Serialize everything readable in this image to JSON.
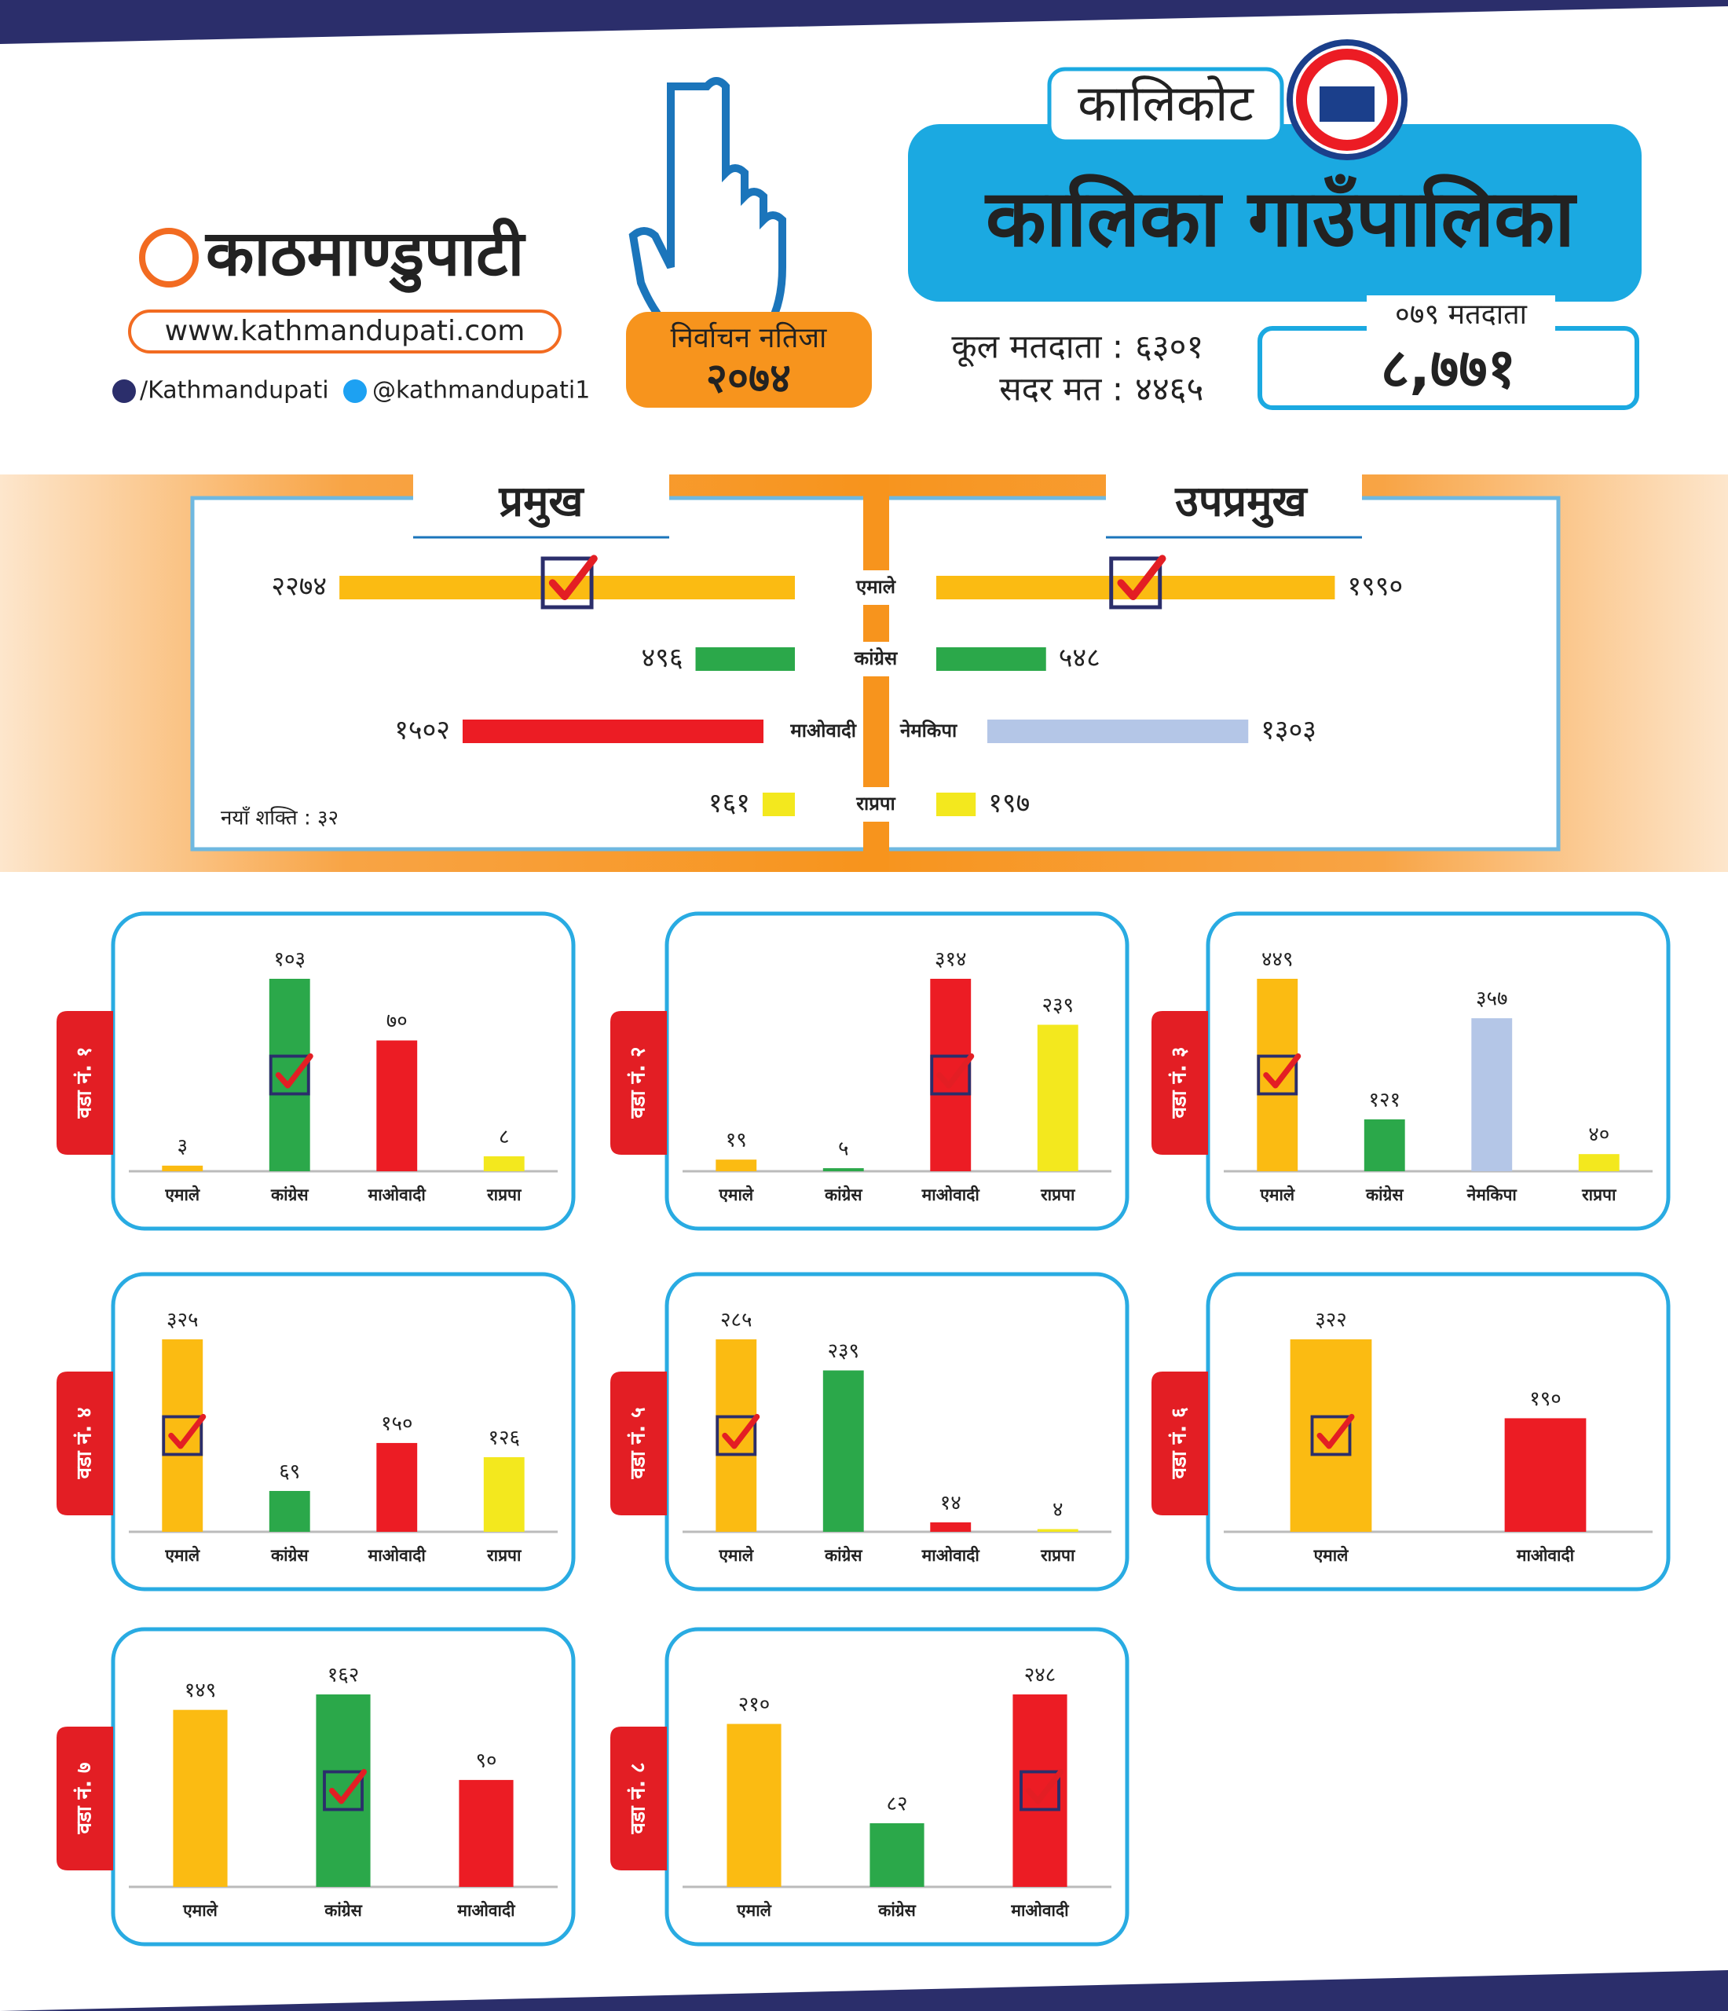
{
  "header": {
    "logo": "काठमाण्डुपाटी",
    "website": "www.kathmandupati.com",
    "facebook": "/Kathmandupati",
    "twitter": "@kathmandupati1",
    "badge_title": "निर्वाचन नतिजा",
    "badge_year": "२०७४",
    "district": "कालिकोट",
    "municipality": "कालिका गाउँपालिका",
    "total_voters_label": "कूल मतदाता :",
    "total_voters": "६३०१",
    "valid_votes_label": "सदर मत :",
    "valid_votes": "४४६५",
    "voters_079_label": "०७९ मतदाता",
    "voters_079": "८,७७१"
  },
  "chart_data": [
    {
      "type": "bar",
      "orientation": "horizontal",
      "categories": [
        "एमाले",
        "कांग्रेस",
        "माओवादी",
        "नेमकिपा",
        "राप्रपा"
      ],
      "colors": [
        "#fbbb12",
        "#2ba84a",
        "#ec1c24",
        "#b4c6e7",
        "#f3e81e"
      ],
      "series": [
        {
          "name": "प्रमुख",
          "values": [
            2274,
            496,
            1502,
            null,
            161
          ],
          "value_labels": [
            "२२७४",
            "४९६",
            "१५०२",
            null,
            "१६१"
          ],
          "winner": 0
        },
        {
          "name": "उपप्रमुख",
          "values": [
            1990,
            548,
            null,
            1303,
            197
          ],
          "value_labels": [
            "१९९०",
            "५४८",
            null,
            "१३०३",
            "१९७"
          ],
          "winner": 0
        }
      ],
      "annotation": "नयाँ शक्ति : ३२"
    },
    {
      "type": "bar",
      "title": "वडा नं. १",
      "categories": [
        "एमाले",
        "कांग्रेस",
        "माओवादी",
        "राप्रपा"
      ],
      "values": [
        3,
        103,
        70,
        8
      ],
      "value_labels": [
        "३",
        "१०३",
        "७०",
        "८"
      ],
      "colors": [
        "#fbbb12",
        "#2ba84a",
        "#ec1c24",
        "#f3e81e"
      ],
      "winner": 1
    },
    {
      "type": "bar",
      "title": "वडा नं. २",
      "categories": [
        "एमाले",
        "कांग्रेस",
        "माओवादी",
        "राप्रपा"
      ],
      "values": [
        19,
        5,
        314,
        239
      ],
      "value_labels": [
        "१९",
        "५",
        "३१४",
        "२३९"
      ],
      "colors": [
        "#fbbb12",
        "#2ba84a",
        "#ec1c24",
        "#f3e81e"
      ],
      "winner": 2
    },
    {
      "type": "bar",
      "title": "वडा नं. ३",
      "categories": [
        "एमाले",
        "कांग्रेस",
        "नेमकिपा",
        "राप्रपा"
      ],
      "values": [
        449,
        121,
        357,
        40
      ],
      "value_labels": [
        "४४९",
        "१२१",
        "३५७",
        "४०"
      ],
      "colors": [
        "#fbbb12",
        "#2ba84a",
        "#b4c6e7",
        "#f3e81e"
      ],
      "winner": 0
    },
    {
      "type": "bar",
      "title": "वडा नं. ४",
      "categories": [
        "एमाले",
        "कांग्रेस",
        "माओवादी",
        "राप्रपा"
      ],
      "values": [
        325,
        69,
        150,
        126
      ],
      "value_labels": [
        "३२५",
        "६९",
        "१५०",
        "१२६"
      ],
      "colors": [
        "#fbbb12",
        "#2ba84a",
        "#ec1c24",
        "#f3e81e"
      ],
      "winner": 0
    },
    {
      "type": "bar",
      "title": "वडा नं. ५",
      "categories": [
        "एमाले",
        "कांग्रेस",
        "माओवादी",
        "राप्रपा"
      ],
      "values": [
        285,
        239,
        14,
        4
      ],
      "value_labels": [
        "२८५",
        "२३९",
        "१४",
        "४"
      ],
      "colors": [
        "#fbbb12",
        "#2ba84a",
        "#ec1c24",
        "#f3e81e"
      ],
      "winner": 0
    },
    {
      "type": "bar",
      "title": "वडा नं. ६",
      "categories": [
        "एमाले",
        "माओवादी"
      ],
      "values": [
        322,
        190
      ],
      "value_labels": [
        "३२२",
        "१९०"
      ],
      "colors": [
        "#fbbb12",
        "#ec1c24"
      ],
      "winner": 0
    },
    {
      "type": "bar",
      "title": "वडा नं. ७",
      "categories": [
        "एमाले",
        "कांग्रेस",
        "माओवादी"
      ],
      "values": [
        149,
        162,
        90
      ],
      "value_labels": [
        "१४९",
        "१६२",
        "९०"
      ],
      "colors": [
        "#fbbb12",
        "#2ba84a",
        "#ec1c24"
      ],
      "winner": 1
    },
    {
      "type": "bar",
      "title": "वडा नं. ८",
      "categories": [
        "एमाले",
        "कांग्रेस",
        "माओवादी"
      ],
      "values": [
        210,
        82,
        248
      ],
      "value_labels": [
        "२१०",
        "८२",
        "२४८"
      ],
      "colors": [
        "#fbbb12",
        "#2ba84a",
        "#ec1c24"
      ],
      "winner": 2
    }
  ]
}
